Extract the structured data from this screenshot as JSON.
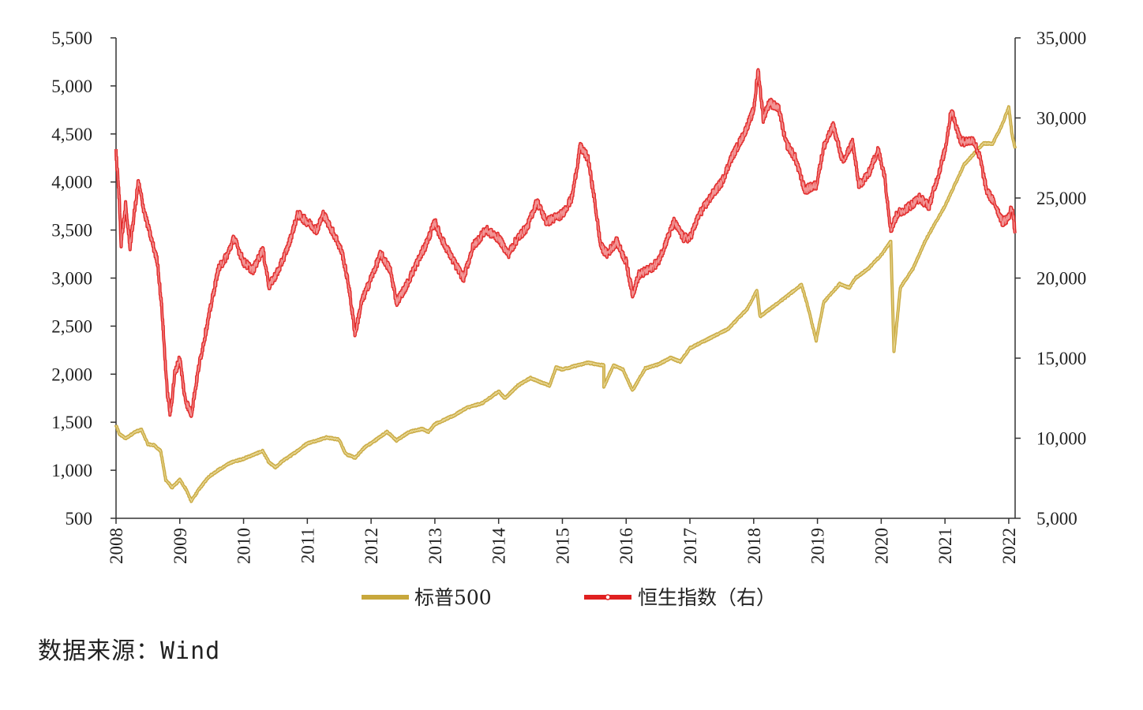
{
  "chart_data": {
    "type": "line",
    "y_left": {
      "ticks": [
        "5,500",
        "5,000",
        "4,500",
        "4,000",
        "3,500",
        "3,000",
        "2,500",
        "2,000",
        "1,500",
        "1,000",
        "500"
      ],
      "ylim": [
        500,
        5500
      ]
    },
    "y_right": {
      "ticks": [
        "35,000",
        "30,000",
        "25,000",
        "20,000",
        "15,000",
        "10,000",
        "5,000"
      ],
      "ylim": [
        5000,
        35000
      ]
    },
    "x": {
      "ticks": [
        "2008",
        "2009",
        "2010",
        "2011",
        "2012",
        "2013",
        "2014",
        "2015",
        "2016",
        "2017",
        "2018",
        "2019",
        "2020",
        "2021",
        "2022"
      ],
      "xlim": [
        2008,
        2022.1
      ]
    },
    "series": [
      {
        "name": "标普500",
        "axis": "left",
        "color": "#c8a83c",
        "points": [
          [
            2008.0,
            1468
          ],
          [
            2008.05,
            1380
          ],
          [
            2008.15,
            1330
          ],
          [
            2008.3,
            1400
          ],
          [
            2008.4,
            1420
          ],
          [
            2008.5,
            1270
          ],
          [
            2008.6,
            1260
          ],
          [
            2008.7,
            1200
          ],
          [
            2008.78,
            900
          ],
          [
            2008.88,
            820
          ],
          [
            2009.0,
            900
          ],
          [
            2009.1,
            800
          ],
          [
            2009.18,
            680
          ],
          [
            2009.3,
            800
          ],
          [
            2009.45,
            930
          ],
          [
            2009.6,
            1000
          ],
          [
            2009.8,
            1080
          ],
          [
            2010.0,
            1120
          ],
          [
            2010.3,
            1200
          ],
          [
            2010.4,
            1080
          ],
          [
            2010.5,
            1030
          ],
          [
            2010.6,
            1090
          ],
          [
            2010.8,
            1180
          ],
          [
            2011.0,
            1280
          ],
          [
            2011.3,
            1340
          ],
          [
            2011.5,
            1320
          ],
          [
            2011.6,
            1170
          ],
          [
            2011.75,
            1130
          ],
          [
            2011.9,
            1240
          ],
          [
            2012.0,
            1280
          ],
          [
            2012.25,
            1400
          ],
          [
            2012.4,
            1310
          ],
          [
            2012.6,
            1400
          ],
          [
            2012.8,
            1430
          ],
          [
            2012.9,
            1400
          ],
          [
            2013.0,
            1480
          ],
          [
            2013.3,
            1570
          ],
          [
            2013.5,
            1650
          ],
          [
            2013.75,
            1700
          ],
          [
            2014.0,
            1820
          ],
          [
            2014.1,
            1750
          ],
          [
            2014.3,
            1880
          ],
          [
            2014.5,
            1960
          ],
          [
            2014.8,
            1880
          ],
          [
            2014.9,
            2070
          ],
          [
            2015.0,
            2050
          ],
          [
            2015.4,
            2120
          ],
          [
            2015.65,
            2090
          ],
          [
            2015.65,
            1870
          ],
          [
            2015.8,
            2090
          ],
          [
            2015.95,
            2050
          ],
          [
            2016.1,
            1830
          ],
          [
            2016.3,
            2060
          ],
          [
            2016.5,
            2100
          ],
          [
            2016.7,
            2170
          ],
          [
            2016.85,
            2130
          ],
          [
            2017.0,
            2270
          ],
          [
            2017.3,
            2370
          ],
          [
            2017.6,
            2470
          ],
          [
            2017.9,
            2680
          ],
          [
            2018.05,
            2870
          ],
          [
            2018.1,
            2600
          ],
          [
            2018.3,
            2700
          ],
          [
            2018.5,
            2800
          ],
          [
            2018.75,
            2930
          ],
          [
            2018.85,
            2700
          ],
          [
            2018.98,
            2350
          ],
          [
            2019.1,
            2750
          ],
          [
            2019.35,
            2940
          ],
          [
            2019.5,
            2900
          ],
          [
            2019.6,
            3000
          ],
          [
            2019.8,
            3100
          ],
          [
            2020.0,
            3240
          ],
          [
            2020.15,
            3380
          ],
          [
            2020.2,
            2240
          ],
          [
            2020.3,
            2900
          ],
          [
            2020.5,
            3100
          ],
          [
            2020.7,
            3400
          ],
          [
            2021.0,
            3750
          ],
          [
            2021.3,
            4180
          ],
          [
            2021.6,
            4400
          ],
          [
            2021.75,
            4400
          ],
          [
            2021.9,
            4600
          ],
          [
            2022.0,
            4780
          ],
          [
            2022.05,
            4500
          ],
          [
            2022.1,
            4350
          ]
        ]
      },
      {
        "name": "恒生指数（右）",
        "axis": "right",
        "color": "#e02020",
        "points": [
          [
            2008.0,
            27800
          ],
          [
            2008.05,
            25000
          ],
          [
            2008.08,
            22200
          ],
          [
            2008.15,
            24500
          ],
          [
            2008.22,
            22000
          ],
          [
            2008.35,
            26000
          ],
          [
            2008.45,
            24000
          ],
          [
            2008.55,
            22500
          ],
          [
            2008.65,
            21000
          ],
          [
            2008.72,
            18000
          ],
          [
            2008.8,
            13000
          ],
          [
            2008.85,
            11500
          ],
          [
            2008.92,
            14000
          ],
          [
            2009.0,
            15000
          ],
          [
            2009.08,
            12500
          ],
          [
            2009.18,
            11500
          ],
          [
            2009.3,
            14500
          ],
          [
            2009.45,
            17500
          ],
          [
            2009.6,
            20500
          ],
          [
            2009.75,
            21500
          ],
          [
            2009.85,
            22500
          ],
          [
            2010.0,
            21000
          ],
          [
            2010.15,
            20500
          ],
          [
            2010.3,
            21800
          ],
          [
            2010.4,
            19500
          ],
          [
            2010.55,
            20500
          ],
          [
            2010.7,
            22000
          ],
          [
            2010.85,
            24000
          ],
          [
            2011.0,
            23500
          ],
          [
            2011.15,
            23000
          ],
          [
            2011.25,
            24000
          ],
          [
            2011.45,
            22500
          ],
          [
            2011.55,
            21500
          ],
          [
            2011.65,
            19500
          ],
          [
            2011.75,
            16500
          ],
          [
            2011.85,
            18500
          ],
          [
            2012.0,
            20000
          ],
          [
            2012.15,
            21500
          ],
          [
            2012.3,
            20500
          ],
          [
            2012.4,
            18500
          ],
          [
            2012.55,
            19500
          ],
          [
            2012.7,
            20800
          ],
          [
            2012.85,
            22000
          ],
          [
            2013.0,
            23500
          ],
          [
            2013.1,
            22500
          ],
          [
            2013.3,
            21000
          ],
          [
            2013.45,
            20000
          ],
          [
            2013.6,
            22000
          ],
          [
            2013.8,
            23000
          ],
          [
            2014.0,
            22500
          ],
          [
            2014.15,
            21500
          ],
          [
            2014.3,
            22500
          ],
          [
            2014.45,
            23200
          ],
          [
            2014.6,
            24800
          ],
          [
            2014.75,
            23500
          ],
          [
            2014.9,
            23800
          ],
          [
            2015.0,
            24000
          ],
          [
            2015.15,
            25000
          ],
          [
            2015.28,
            28200
          ],
          [
            2015.4,
            27500
          ],
          [
            2015.5,
            25000
          ],
          [
            2015.6,
            22000
          ],
          [
            2015.7,
            21500
          ],
          [
            2015.85,
            22300
          ],
          [
            2016.0,
            21000
          ],
          [
            2016.1,
            19000
          ],
          [
            2016.2,
            20200
          ],
          [
            2016.35,
            20500
          ],
          [
            2016.5,
            21000
          ],
          [
            2016.6,
            22000
          ],
          [
            2016.75,
            23500
          ],
          [
            2016.9,
            22500
          ],
          [
            2017.0,
            22500
          ],
          [
            2017.15,
            24000
          ],
          [
            2017.35,
            25200
          ],
          [
            2017.5,
            26000
          ],
          [
            2017.65,
            27500
          ],
          [
            2017.85,
            29000
          ],
          [
            2018.0,
            30500
          ],
          [
            2018.07,
            33000
          ],
          [
            2018.15,
            30000
          ],
          [
            2018.25,
            31000
          ],
          [
            2018.4,
            30500
          ],
          [
            2018.5,
            28500
          ],
          [
            2018.65,
            27500
          ],
          [
            2018.8,
            25500
          ],
          [
            2018.98,
            25800
          ],
          [
            2019.1,
            28200
          ],
          [
            2019.25,
            29500
          ],
          [
            2019.4,
            27200
          ],
          [
            2019.55,
            28500
          ],
          [
            2019.65,
            25800
          ],
          [
            2019.8,
            26500
          ],
          [
            2019.95,
            28000
          ],
          [
            2020.05,
            26500
          ],
          [
            2020.15,
            23000
          ],
          [
            2020.25,
            24000
          ],
          [
            2020.45,
            24500
          ],
          [
            2020.6,
            25000
          ],
          [
            2020.75,
            24500
          ],
          [
            2020.9,
            26500
          ],
          [
            2021.0,
            28000
          ],
          [
            2021.1,
            30500
          ],
          [
            2021.25,
            28500
          ],
          [
            2021.45,
            28600
          ],
          [
            2021.55,
            27500
          ],
          [
            2021.65,
            25500
          ],
          [
            2021.8,
            24500
          ],
          [
            2021.9,
            23500
          ],
          [
            2022.0,
            23800
          ],
          [
            2022.05,
            24500
          ],
          [
            2022.1,
            22800
          ]
        ]
      }
    ],
    "legend": {
      "position": "bottom-center"
    }
  },
  "legend": {
    "s1": "标普500",
    "s2": "恒生指数（右）"
  },
  "source": "数据来源：Wind"
}
